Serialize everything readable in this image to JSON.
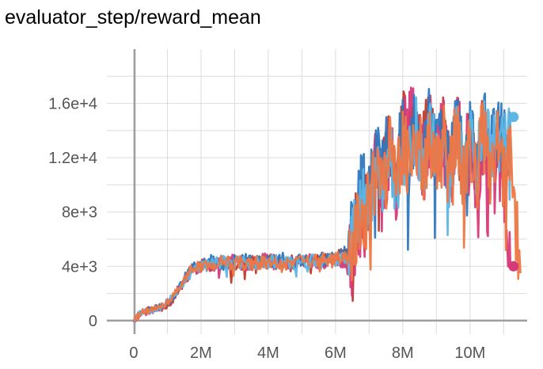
{
  "chart_data": {
    "type": "line",
    "title": "evaluator_step/reward_mean",
    "xlabel": "",
    "ylabel": "",
    "xlim": [
      -800000,
      11700000
    ],
    "ylim": [
      -1000,
      20000
    ],
    "x_ticks": [
      0,
      2000000,
      4000000,
      6000000,
      8000000,
      10000000
    ],
    "x_tick_labels": [
      "0",
      "2M",
      "4M",
      "6M",
      "8M",
      "10M"
    ],
    "y_ticks": [
      0,
      4000,
      8000,
      12000,
      16000
    ],
    "y_tick_labels": [
      "0",
      "4e+3",
      "8e+3",
      "1.2e+4",
      "1.6e+4"
    ],
    "grid": true,
    "legend": "none",
    "series": [
      {
        "color": "#c0392b",
        "end_marker": false,
        "points": [
          [
            0,
            0
          ],
          [
            200000,
            600
          ],
          [
            500000,
            800
          ],
          [
            800000,
            900
          ],
          [
            1100000,
            1300
          ],
          [
            1400000,
            2400
          ],
          [
            1700000,
            3600
          ],
          [
            2000000,
            4100
          ],
          [
            2300000,
            3900
          ],
          [
            2600000,
            4300
          ],
          [
            2900000,
            4100
          ],
          [
            3200000,
            4000
          ],
          [
            3500000,
            4300
          ],
          [
            3800000,
            4200
          ],
          [
            4100000,
            4400
          ],
          [
            4400000,
            4100
          ],
          [
            4700000,
            4300
          ],
          [
            5000000,
            4400
          ],
          [
            5300000,
            4300
          ],
          [
            5600000,
            4500
          ],
          [
            5900000,
            4500
          ],
          [
            6200000,
            5000
          ],
          [
            6400000,
            4600
          ],
          [
            6600000,
            6800
          ],
          [
            6800000,
            8500
          ],
          [
            7000000,
            8200
          ],
          [
            7200000,
            11500
          ],
          [
            7400000,
            10500
          ],
          [
            7600000,
            13200
          ],
          [
            7800000,
            9800
          ],
          [
            8000000,
            14500
          ],
          [
            8200000,
            13000
          ],
          [
            8400000,
            15000
          ],
          [
            8600000,
            12500
          ],
          [
            8800000,
            15300
          ],
          [
            9000000,
            10500
          ],
          [
            9200000,
            14600
          ],
          [
            9400000,
            11000
          ],
          [
            9600000,
            15100
          ],
          [
            9800000,
            9800
          ],
          [
            10000000,
            13900
          ],
          [
            10200000,
            10200
          ],
          [
            10400000,
            15400
          ],
          [
            10600000,
            11300
          ],
          [
            10800000,
            14200
          ],
          [
            11000000,
            10000
          ],
          [
            11200000,
            12800
          ]
        ],
        "jitter": 2600,
        "seed": 11
      },
      {
        "color": "#d63a78",
        "end_marker": true,
        "points": [
          [
            0,
            0
          ],
          [
            200000,
            500
          ],
          [
            500000,
            700
          ],
          [
            800000,
            1000
          ],
          [
            1100000,
            1500
          ],
          [
            1400000,
            2600
          ],
          [
            1700000,
            3800
          ],
          [
            2000000,
            4000
          ],
          [
            2300000,
            4100
          ],
          [
            2600000,
            4200
          ],
          [
            2900000,
            4400
          ],
          [
            3200000,
            4100
          ],
          [
            3500000,
            4200
          ],
          [
            3800000,
            4500
          ],
          [
            4100000,
            4300
          ],
          [
            4400000,
            4200
          ],
          [
            4700000,
            4400
          ],
          [
            5000000,
            4300
          ],
          [
            5300000,
            4500
          ],
          [
            5600000,
            4200
          ],
          [
            5900000,
            4400
          ],
          [
            6200000,
            4300
          ],
          [
            6400000,
            4500
          ],
          [
            6600000,
            6000
          ],
          [
            6800000,
            7600
          ],
          [
            7000000,
            8800
          ],
          [
            7200000,
            11000
          ],
          [
            7400000,
            9800
          ],
          [
            7600000,
            12400
          ],
          [
            7800000,
            10400
          ],
          [
            8000000,
            13000
          ],
          [
            8200000,
            15200
          ],
          [
            8400000,
            14200
          ],
          [
            8600000,
            11200
          ],
          [
            8800000,
            14800
          ],
          [
            9000000,
            11800
          ],
          [
            9200000,
            13600
          ],
          [
            9400000,
            10200
          ],
          [
            9600000,
            14400
          ],
          [
            9800000,
            11600
          ],
          [
            10000000,
            12800
          ],
          [
            10200000,
            9800
          ],
          [
            10400000,
            13600
          ],
          [
            10600000,
            11800
          ],
          [
            10800000,
            13000
          ],
          [
            11000000,
            9600
          ],
          [
            11200000,
            4000
          ]
        ],
        "jitter": 3000,
        "seed": 23
      },
      {
        "color": "#2f78bd",
        "end_marker": false,
        "points": [
          [
            0,
            0
          ],
          [
            200000,
            700
          ],
          [
            500000,
            900
          ],
          [
            800000,
            1100
          ],
          [
            1100000,
            1400
          ],
          [
            1400000,
            2800
          ],
          [
            1700000,
            3700
          ],
          [
            2000000,
            4200
          ],
          [
            2300000,
            4400
          ],
          [
            2600000,
            4200
          ],
          [
            2900000,
            4300
          ],
          [
            3200000,
            4500
          ],
          [
            3500000,
            4300
          ],
          [
            3800000,
            4400
          ],
          [
            4100000,
            4200
          ],
          [
            4400000,
            4500
          ],
          [
            4700000,
            4300
          ],
          [
            5000000,
            4400
          ],
          [
            5300000,
            4200
          ],
          [
            5600000,
            4600
          ],
          [
            5900000,
            4500
          ],
          [
            6200000,
            4800
          ],
          [
            6400000,
            5200
          ],
          [
            6600000,
            8000
          ],
          [
            6800000,
            10000
          ],
          [
            7000000,
            9200
          ],
          [
            7200000,
            12000
          ],
          [
            7400000,
            11500
          ],
          [
            7600000,
            13500
          ],
          [
            7800000,
            10800
          ],
          [
            8000000,
            14000
          ],
          [
            8200000,
            12200
          ],
          [
            8400000,
            15200
          ],
          [
            8600000,
            12000
          ],
          [
            8800000,
            14600
          ],
          [
            9000000,
            12500
          ],
          [
            9200000,
            13800
          ],
          [
            9400000,
            10800
          ],
          [
            9600000,
            14800
          ],
          [
            9800000,
            11800
          ],
          [
            10000000,
            14000
          ],
          [
            10200000,
            12000
          ],
          [
            10400000,
            15000
          ],
          [
            10600000,
            12600
          ],
          [
            10800000,
            14400
          ],
          [
            11000000,
            13000
          ],
          [
            11200000,
            14600
          ]
        ],
        "jitter": 2800,
        "seed": 37
      },
      {
        "color": "#5eb6e4",
        "end_marker": true,
        "points": [
          [
            0,
            0
          ],
          [
            200000,
            600
          ],
          [
            500000,
            800
          ],
          [
            800000,
            1000
          ],
          [
            1100000,
            1600
          ],
          [
            1400000,
            2500
          ],
          [
            1700000,
            3500
          ],
          [
            2000000,
            4000
          ],
          [
            2300000,
            4200
          ],
          [
            2600000,
            4300
          ],
          [
            2900000,
            4200
          ],
          [
            3200000,
            4300
          ],
          [
            3500000,
            4200
          ],
          [
            3800000,
            4300
          ],
          [
            4100000,
            4400
          ],
          [
            4400000,
            4300
          ],
          [
            4700000,
            4200
          ],
          [
            5000000,
            4300
          ],
          [
            5300000,
            4400
          ],
          [
            5600000,
            4300
          ],
          [
            5900000,
            4500
          ],
          [
            6200000,
            4600
          ],
          [
            6400000,
            4400
          ],
          [
            6600000,
            7000
          ],
          [
            6800000,
            9000
          ],
          [
            7000000,
            8600
          ],
          [
            7200000,
            11200
          ],
          [
            7400000,
            10000
          ],
          [
            7600000,
            12800
          ],
          [
            7800000,
            9500
          ],
          [
            8000000,
            13200
          ],
          [
            8200000,
            11800
          ],
          [
            8400000,
            14400
          ],
          [
            8600000,
            10800
          ],
          [
            8800000,
            14100
          ],
          [
            9000000,
            11600
          ],
          [
            9200000,
            13300
          ],
          [
            9400000,
            10400
          ],
          [
            9600000,
            14300
          ],
          [
            9800000,
            11200
          ],
          [
            10000000,
            13600
          ],
          [
            10200000,
            11500
          ],
          [
            10400000,
            14600
          ],
          [
            10600000,
            12300
          ],
          [
            10800000,
            14000
          ],
          [
            11000000,
            12600
          ],
          [
            11200000,
            15000
          ]
        ],
        "jitter": 2600,
        "seed": 53
      },
      {
        "color": "#ee7744",
        "end_marker": false,
        "points": [
          [
            0,
            0
          ],
          [
            200000,
            500
          ],
          [
            500000,
            800
          ],
          [
            800000,
            1000
          ],
          [
            1100000,
            1500
          ],
          [
            1400000,
            2700
          ],
          [
            1700000,
            3700
          ],
          [
            2000000,
            4100
          ],
          [
            2300000,
            4000
          ],
          [
            2600000,
            4300
          ],
          [
            2900000,
            4200
          ],
          [
            3200000,
            4400
          ],
          [
            3500000,
            4200
          ],
          [
            3800000,
            4300
          ],
          [
            4100000,
            4100
          ],
          [
            4400000,
            4300
          ],
          [
            4700000,
            4200
          ],
          [
            5000000,
            4400
          ],
          [
            5300000,
            4300
          ],
          [
            5600000,
            4500
          ],
          [
            5900000,
            4400
          ],
          [
            6200000,
            4600
          ],
          [
            6400000,
            4500
          ],
          [
            6600000,
            6600
          ],
          [
            6800000,
            8400
          ],
          [
            7000000,
            8000
          ],
          [
            7200000,
            10600
          ],
          [
            7400000,
            9600
          ],
          [
            7600000,
            12400
          ],
          [
            7800000,
            9800
          ],
          [
            8000000,
            13400
          ],
          [
            8200000,
            11600
          ],
          [
            8400000,
            14000
          ],
          [
            8600000,
            11000
          ],
          [
            8800000,
            13800
          ],
          [
            9000000,
            10800
          ],
          [
            9200000,
            13200
          ],
          [
            9400000,
            10200
          ],
          [
            9600000,
            13800
          ],
          [
            9800000,
            10600
          ],
          [
            10000000,
            13000
          ],
          [
            10200000,
            10800
          ],
          [
            10400000,
            14000
          ],
          [
            10600000,
            11400
          ],
          [
            10800000,
            13400
          ],
          [
            11000000,
            11000
          ],
          [
            11200000,
            12000
          ],
          [
            11500000,
            3500
          ]
        ],
        "jitter": 3000,
        "seed": 71
      }
    ]
  }
}
